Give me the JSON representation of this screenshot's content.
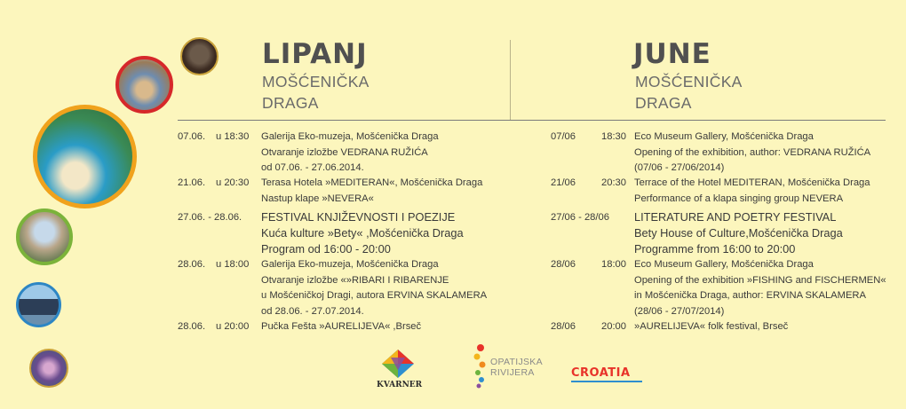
{
  "left": {
    "title": "LIPANJ",
    "subtitle_line1": "MOŠĆENIČKA",
    "subtitle_line2": "DRAGA",
    "events": [
      {
        "date": "07.06.",
        "time": "u  18:30",
        "lines": [
          "Galerija Eko-muzeja, Mošćenička Draga",
          "Otvaranje  izložbe VEDRANA RUŽIĆA",
          "od 07.06. - 27.06.2014."
        ]
      },
      {
        "date": "21.06.",
        "time": "u  20:30",
        "lines": [
          "Terasa Hotela »MEDITERAN«, Mošćenička Draga",
          "Nastup klape »NEVERA«"
        ]
      },
      {
        "date": "27.06. - 28.06.",
        "time": "",
        "lines": [
          "FESTIVAL KNJIŽEVNOSTI I POEZIJE",
          "Kuća kulture »Bety« ,Mošćenička Draga",
          "Program od 16:00 - 20:00"
        ]
      },
      {
        "date": "28.06.",
        "time": "u  18:00",
        "lines": [
          "Galerija Eko-muzeja, Mošćenička Draga",
          "Otvaranje  izložbe «»RIBARI I RIBARENJE",
          "u Mošćeničkoj Dragi, autora ERVINA SKALAMERA",
          "od 28.06. - 27.07.2014."
        ]
      },
      {
        "date": "28.06.",
        "time": "u  20:00",
        "lines": [
          "Pučka Fešta »AURELIJEVA« ,Brseč"
        ]
      }
    ]
  },
  "right": {
    "title": "JUNE",
    "subtitle_line1": "MOŠĆENIČKA",
    "subtitle_line2": "DRAGA",
    "events": [
      {
        "date": "07/06",
        "time": "18:30",
        "lines": [
          "Eco Museum Gallery, Mošćenička Draga",
          "Opening of the exhibition, author: VEDRANA RUŽIĆA",
          "(07/06 - 27/06/2014)"
        ]
      },
      {
        "date": "21/06",
        "time": "20:30",
        "lines": [
          "Terrace of the Hotel MEDITERAN, Mošćenička Draga",
          "Performance of a klapa singing group NEVERA"
        ]
      },
      {
        "date": "27/06 - 28/06",
        "time": "",
        "lines": [
          "LITERATURE AND POETRY FESTIVAL",
          "Bety House of Culture,Mošćenička Draga",
          "Programme from 16:00 to 20:00"
        ]
      },
      {
        "date": "28/06",
        "time": "18:00",
        "lines": [
          "Eco Museum Gallery, Mošćenička Draga",
          "Opening of the exhibition »FISHING and FISCHERMEN«",
          "in Mošćenička Draga, author: ERVINA SKALAMERA",
          "(28/06 - 27/07/2014)"
        ]
      },
      {
        "date": "28/06",
        "time": "20:00",
        "lines": [
          "»AURELIJEVA« folk festival, Brseč"
        ]
      }
    ]
  },
  "logos": {
    "kvarner": "KVARNER",
    "opatijska_line1": "OPATIJSKA",
    "opatijska_line2": "RIVIJERA",
    "croatia": "CROATIA"
  },
  "colors": {
    "background": "#fcf6bd",
    "heading": "#505050",
    "divider": "#7b7b7b"
  }
}
